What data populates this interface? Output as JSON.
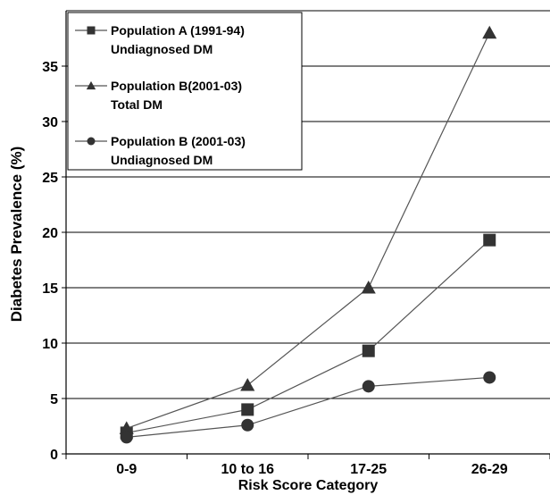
{
  "chart_data": {
    "type": "line",
    "xlabel": "Risk Score Category",
    "ylabel": "Diabetes Prevalence (%)",
    "categories": [
      "0-9",
      "10 to 16",
      "17-25",
      "26-29"
    ],
    "ylim": [
      0,
      40
    ],
    "yticks": [
      0,
      5,
      10,
      15,
      20,
      25,
      30,
      35
    ],
    "grid": "horizontal",
    "legend_position": "top-left",
    "series": [
      {
        "name_line1": "Population A (1991-94)",
        "name_line2": "Undiagnosed DM",
        "marker": "square",
        "values": [
          1.9,
          4.0,
          9.3,
          19.3
        ]
      },
      {
        "name_line1": "Population B(2001-03)",
        "name_line2": "Total DM",
        "marker": "triangle",
        "values": [
          2.3,
          6.2,
          15.0,
          38.0
        ]
      },
      {
        "name_line1": "Population B (2001-03)",
        "name_line2": "Undiagnosed DM",
        "marker": "circle",
        "values": [
          1.5,
          2.6,
          6.1,
          6.9
        ]
      }
    ],
    "colors": {
      "line": "#555555",
      "marker": "#333333",
      "axis": "#000000",
      "grid": "#000000"
    }
  }
}
